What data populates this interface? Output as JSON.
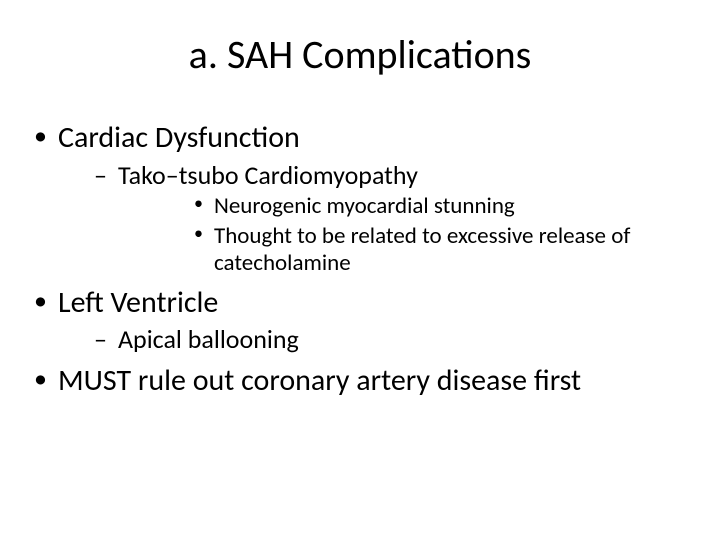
{
  "slide": {
    "title": "a. SAH Complications",
    "background_color": "#ffffff",
    "text_color": "#000000",
    "font_family": "Calibri",
    "title_fontsize": 40,
    "bullets": [
      {
        "text": "Cardiac Dysfunction",
        "fontsize": 30,
        "children": [
          {
            "text": "Tako–tsubo Cardiomyopathy",
            "fontsize": 26,
            "children": [
              {
                "text": "Neurogenic myocardial stunning",
                "fontsize": 23
              },
              {
                "text": "Thought to be related to excessive release of catecholamine",
                "fontsize": 23
              }
            ]
          }
        ]
      },
      {
        "text": "Left Ventricle",
        "fontsize": 30,
        "children": [
          {
            "text": "Apical ballooning",
            "fontsize": 26
          }
        ]
      },
      {
        "text": "MUST rule out coronary artery disease first",
        "fontsize": 30
      }
    ]
  }
}
